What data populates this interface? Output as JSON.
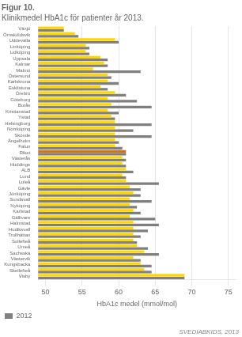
{
  "chart_data": {
    "type": "bar",
    "orientation": "horizontal",
    "title": "Figur 10.",
    "subtitle": "Klinikmedel HbA1c för patienter år 2013.",
    "x_label": "HbA1c medel (mmol/mol)",
    "annotations": [
      "SVEDIABKIDS, 2013"
    ],
    "categories": [
      "Växjö",
      "Örnsköldsvik",
      "Uddevalla",
      "Linköping",
      "Lidköping",
      "Uppsala",
      "Kalmar",
      "Malmö",
      "Östersund",
      "Karlskrona",
      "Eskilstuna",
      "Örebro",
      "Göteborg",
      "Borås",
      "Kristianstad",
      "Ystad",
      "Helsingborg",
      "Norrköping",
      "Skövde",
      "Ängelholm",
      "Falun",
      "Riket",
      "Västerås",
      "Huddinge",
      "ALB",
      "Lund",
      "Luleå",
      "Gävle",
      "Jönköping",
      "Sundsvall",
      "Nyköping",
      "Karlstad",
      "Gällivare",
      "Halmstad",
      "Hudiksvall",
      "Trollhättan",
      "Sollefteå",
      "Umeå",
      "Sachsska",
      "Västervik",
      "Kungsbacka",
      "Skellefteå",
      "Visby"
    ],
    "series": [
      {
        "colors": [
          "#FFD700",
          "#FFD700",
          "#FFD700",
          "#FFD700",
          "#FFD700",
          "#FFD700",
          "#FFD700",
          "#FFD700",
          "#FFD700",
          "#FFD700",
          "#FFD700",
          "#FFD700",
          "#FFD700",
          "#FFD700",
          "#FFD700",
          "#FFD700",
          "#FFD700",
          "#FFD700",
          "#FFD700",
          "#FFD700",
          "#FFD700",
          "#D4721A",
          "#FFD700",
          "#FFD700",
          "#FFD700",
          "#FFD700",
          "#FFD700",
          "#FFD700",
          "#FFD700",
          "#FFD700",
          "#FFD700",
          "#FFD700",
          "#FFD700",
          "#FFD700",
          "#FFD700",
          "#FFD700",
          "#FFD700",
          "#FFD700",
          "#FFD700",
          "#FFD700",
          "#FFD700",
          "#FFD700",
          "#FFD700"
        ],
        "values": [
          52.5,
          54.0,
          59.5,
          55.5,
          55.5,
          57.5,
          58.0,
          56.5,
          58.5,
          58.5,
          57.5,
          59.5,
          58.5,
          59.0,
          58.5,
          59.0,
          59.5,
          59.5,
          59.5,
          59.5,
          59.5,
          61.0,
          60.5,
          60.5,
          61.0,
          60.5,
          61.0,
          61.5,
          62.0,
          61.5,
          61.5,
          62.0,
          61.5,
          62.0,
          62.0,
          62.0,
          62.0,
          62.5,
          63.5,
          62.0,
          63.0,
          63.5,
          69.0
        ]
      },
      {
        "name": "2012",
        "color": "#7F7F7F",
        "values": [
          52.5,
          54.5,
          60.0,
          56.0,
          56.0,
          58.5,
          58.5,
          63.0,
          59.0,
          60.0,
          58.5,
          61.0,
          62.5,
          64.5,
          60.0,
          59.5,
          64.5,
          62.0,
          64.5,
          60.0,
          60.5,
          61.0,
          61.0,
          61.0,
          62.0,
          61.0,
          65.5,
          63.0,
          63.0,
          64.5,
          62.5,
          63.0,
          65.0,
          65.5,
          64.0,
          63.0,
          62.5,
          64.0,
          65.5,
          63.0,
          64.5,
          64.5,
          69.0
        ]
      }
    ],
    "xlim": [
      49,
      76
    ],
    "xticks": [
      50,
      55,
      60,
      65,
      70,
      75
    ],
    "grid": true,
    "legend": "lower left"
  }
}
